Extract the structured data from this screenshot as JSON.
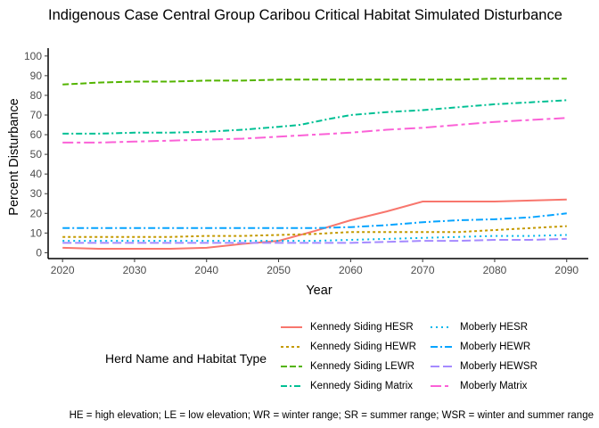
{
  "title": "Indigenous Case Central Group Caribou Critical Habitat Simulated Disturbance",
  "legend_title": "Herd Name and Habitat Type",
  "caption": "HE = high elevation; LE = low elevation; WR  = winter range; SR = summer range; WSR = winter and summer range",
  "chart_data": {
    "type": "line",
    "title": "Indigenous Case Central Group Caribou Critical Habitat Simulated Disturbance",
    "xlabel": "Year",
    "ylabel": "Percent Disturbance",
    "xlim": [
      2018,
      2093
    ],
    "ylim": [
      -3,
      104
    ],
    "x_ticks": [
      2020,
      2030,
      2040,
      2050,
      2060,
      2070,
      2080,
      2090
    ],
    "y_ticks": [
      0,
      10,
      20,
      30,
      40,
      50,
      60,
      70,
      80,
      90,
      100
    ],
    "grid": false,
    "legend_position": "bottom",
    "series": [
      {
        "name": "Kennedy Siding HESR",
        "color": "#F8766D",
        "dash": "solid",
        "x": [
          2020,
          2025,
          2030,
          2035,
          2040,
          2045,
          2050,
          2055,
          2060,
          2065,
          2070,
          2075,
          2080,
          2085,
          2090
        ],
        "y": [
          2.5,
          2,
          2,
          2,
          2.5,
          4.5,
          6,
          11,
          16.5,
          21,
          26,
          26,
          26,
          26.5,
          27
        ]
      },
      {
        "name": "Kennedy Siding HEWR",
        "color": "#C49A00",
        "dash": "3,3",
        "x": [
          2020,
          2025,
          2030,
          2035,
          2040,
          2045,
          2050,
          2055,
          2060,
          2065,
          2070,
          2075,
          2080,
          2085,
          2090
        ],
        "y": [
          8,
          8,
          8,
          8,
          8.5,
          8.5,
          9,
          9.5,
          10.5,
          10.5,
          10.5,
          10.5,
          11.5,
          12.5,
          13.5
        ]
      },
      {
        "name": "Kennedy Siding LEWR",
        "color": "#53B400",
        "dash": "7,3",
        "x": [
          2020,
          2025,
          2030,
          2035,
          2040,
          2045,
          2050,
          2055,
          2060,
          2065,
          2070,
          2075,
          2080,
          2085,
          2090
        ],
        "y": [
          85.5,
          86.5,
          87,
          87,
          87.5,
          87.5,
          88,
          88,
          88,
          88,
          88,
          88,
          88.5,
          88.5,
          88.5
        ]
      },
      {
        "name": "Kennedy Siding Matrix",
        "color": "#00C094",
        "dash": "7,3,2,3",
        "x": [
          2020,
          2025,
          2030,
          2035,
          2040,
          2045,
          2050,
          2053,
          2057,
          2060,
          2065,
          2070,
          2075,
          2080,
          2085,
          2090
        ],
        "y": [
          60.5,
          60.5,
          61,
          61,
          61.5,
          62.5,
          64,
          65,
          68,
          70,
          71.5,
          72.5,
          74,
          75.5,
          76.5,
          77.5
        ]
      },
      {
        "name": "Moberly HESR",
        "color": "#00B6EB",
        "dash": "2,4",
        "x": [
          2020,
          2025,
          2030,
          2035,
          2040,
          2045,
          2050,
          2055,
          2060,
          2065,
          2070,
          2075,
          2080,
          2085,
          2090
        ],
        "y": [
          6,
          6,
          6,
          6,
          6,
          6,
          6,
          6,
          6.5,
          7,
          7.5,
          8,
          8.5,
          8.5,
          9
        ]
      },
      {
        "name": "Moberly HEWR",
        "color": "#06A4FF",
        "dash": "8,3,2,3",
        "x": [
          2020,
          2025,
          2030,
          2035,
          2040,
          2045,
          2050,
          2055,
          2060,
          2065,
          2070,
          2075,
          2080,
          2085,
          2090
        ],
        "y": [
          12.5,
          12.5,
          12.5,
          12.5,
          12.5,
          12.5,
          12.5,
          12.5,
          13,
          14,
          15.5,
          16.5,
          17,
          18,
          20
        ]
      },
      {
        "name": "Moberly HEWSR",
        "color": "#A58AFF",
        "dash": "10,4",
        "x": [
          2020,
          2025,
          2030,
          2035,
          2040,
          2045,
          2050,
          2055,
          2060,
          2065,
          2070,
          2075,
          2080,
          2085,
          2090
        ],
        "y": [
          5,
          5,
          5,
          5,
          5,
          5,
          5,
          5,
          5,
          5.5,
          6,
          6,
          6.5,
          6.5,
          7
        ]
      },
      {
        "name": "Moberly Matrix",
        "color": "#FB61D7",
        "dash": "12,4,4,4",
        "x": [
          2020,
          2025,
          2030,
          2035,
          2040,
          2045,
          2050,
          2055,
          2060,
          2065,
          2070,
          2075,
          2080,
          2085,
          2090
        ],
        "y": [
          56,
          56,
          56.5,
          57,
          57.5,
          58,
          59,
          60,
          61,
          62.5,
          63.5,
          65,
          66.5,
          67.5,
          68.5
        ]
      }
    ]
  }
}
